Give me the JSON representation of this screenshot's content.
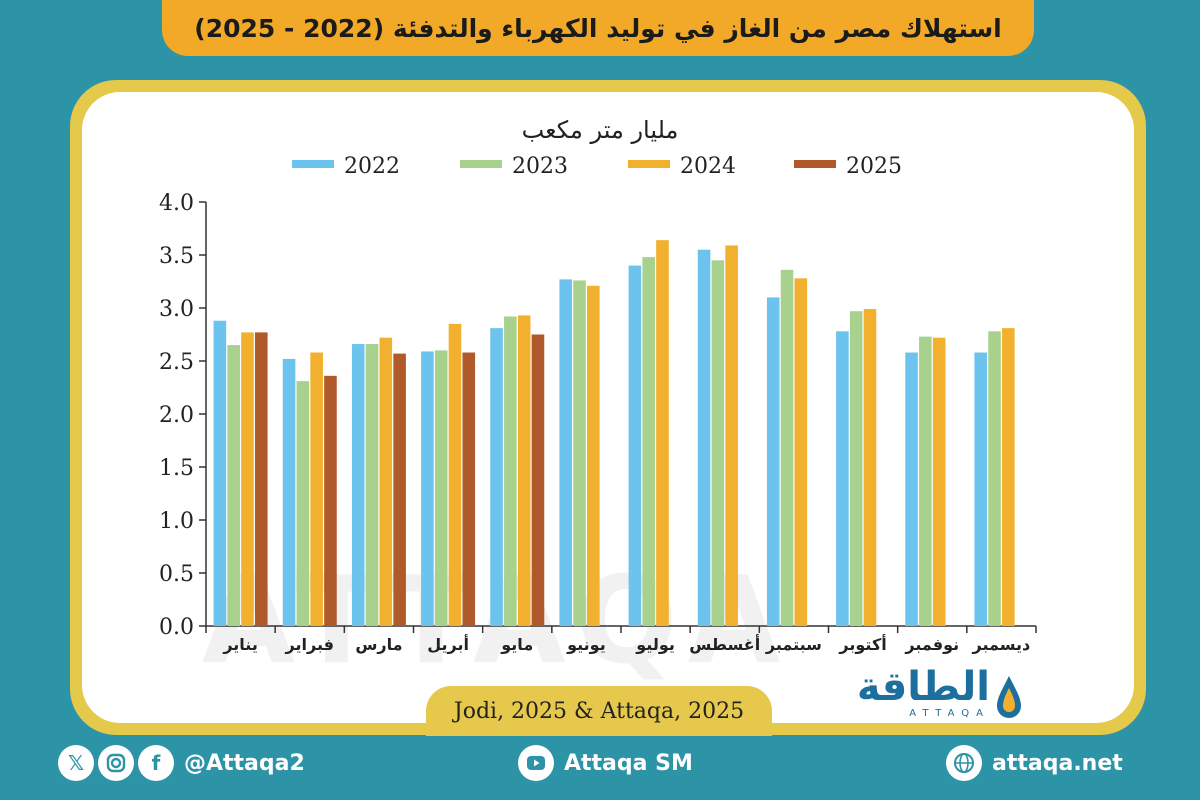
{
  "header": {
    "title": "استهلاك مصر من الغاز في توليد الكهرباء والتدفئة (2022 - 2025)"
  },
  "watermark": {
    "text": "ATTAQA"
  },
  "source": {
    "text": "Jodi, 2025 & Attaqa, 2025"
  },
  "logo": {
    "arabic": "الطاقة",
    "english": "ATTAQA"
  },
  "footer": {
    "social_handle": "@Attaqa2",
    "youtube": "Attaqa SM",
    "website": "attaqa.net",
    "icons": [
      "x-icon",
      "instagram-icon",
      "facebook-icon",
      "youtube-icon",
      "globe-icon"
    ]
  },
  "colors": {
    "background": "#2d93a6",
    "title_bar": "#f3a928",
    "frame": "#e4c94a",
    "s2022": "#6cc3ee",
    "s2023": "#a9d18e",
    "s2024": "#f2b02f",
    "s2025": "#b0592a"
  },
  "chart_data": {
    "type": "bar",
    "title": "مليار متر مكعب",
    "xlabel": "",
    "ylabel": "",
    "ylim": [
      0,
      4
    ],
    "yticks": [
      "0.0",
      "0.5",
      "1.0",
      "1.5",
      "2.0",
      "2.5",
      "3.0",
      "3.5",
      "4.0"
    ],
    "legend_position": "top",
    "categories": [
      "يناير",
      "فبراير",
      "مارس",
      "أبريل",
      "مايو",
      "يونيو",
      "يوليو",
      "أغسطس",
      "سبتمبر",
      "أكتوبر",
      "نوفمبر",
      "ديسمبر"
    ],
    "series": [
      {
        "name": "2022",
        "color": "#6cc3ee",
        "values": [
          2.88,
          2.52,
          2.66,
          2.59,
          2.81,
          3.27,
          3.4,
          3.55,
          3.1,
          2.78,
          2.58,
          2.58
        ]
      },
      {
        "name": "2023",
        "color": "#a9d18e",
        "values": [
          2.65,
          2.31,
          2.66,
          2.6,
          2.92,
          3.26,
          3.48,
          3.45,
          3.36,
          2.97,
          2.73,
          2.78
        ]
      },
      {
        "name": "2024",
        "color": "#f2b02f",
        "values": [
          2.77,
          2.58,
          2.72,
          2.85,
          2.93,
          3.21,
          3.64,
          3.59,
          3.28,
          2.99,
          2.72,
          2.81
        ]
      },
      {
        "name": "2025",
        "color": "#b0592a",
        "values": [
          2.77,
          2.36,
          2.57,
          2.58,
          2.75,
          null,
          null,
          null,
          null,
          null,
          null,
          null
        ]
      }
    ]
  }
}
